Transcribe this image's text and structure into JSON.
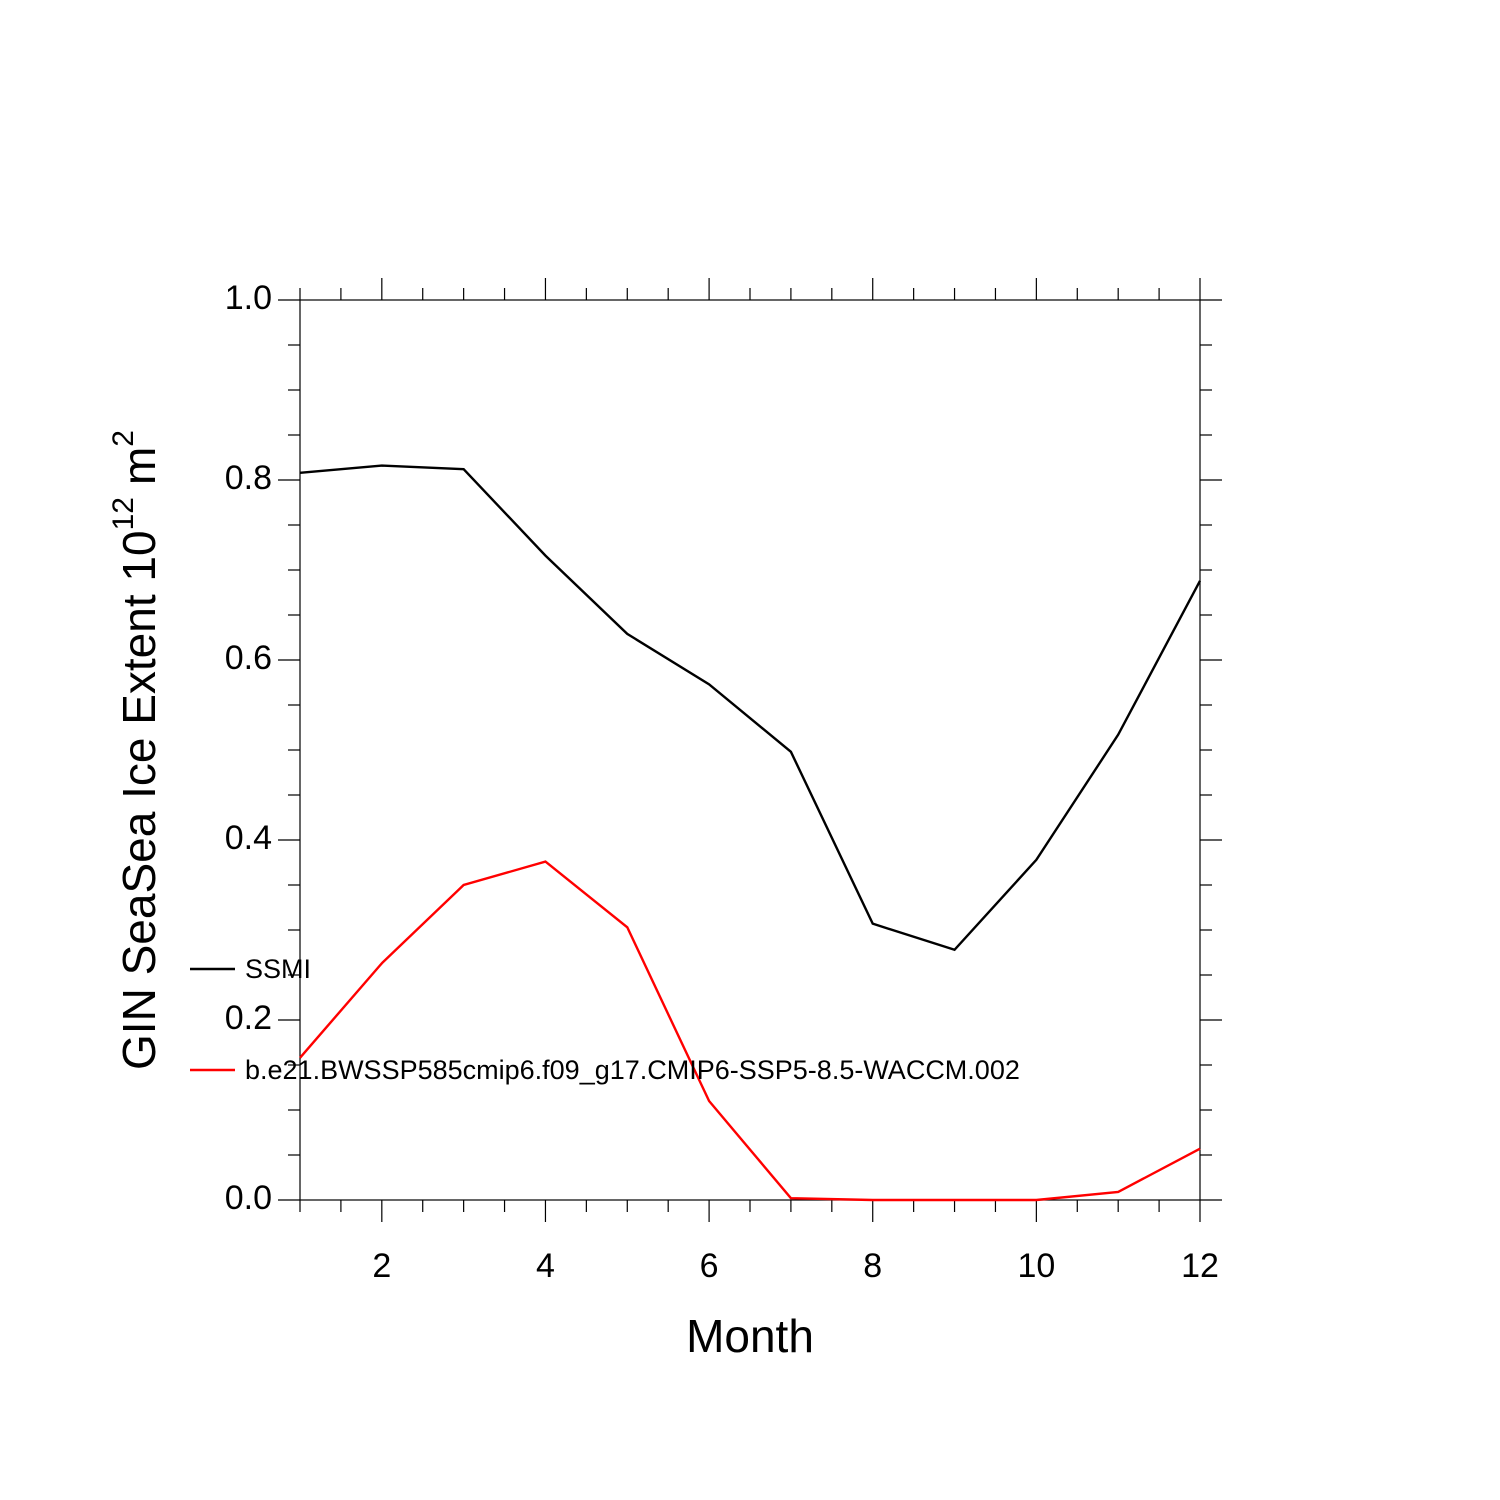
{
  "chart_data": {
    "type": "line",
    "x_label": "Month",
    "y_label": "GIN SeaSea Ice Extent 10",
    "y_label_exponent": "12",
    "y_label_unit": "m",
    "y_label_unit_exponent": "2",
    "x": [
      1,
      2,
      3,
      4,
      5,
      6,
      7,
      8,
      9,
      10,
      11,
      12
    ],
    "series": [
      {
        "name": "SSMI",
        "color": "#000000",
        "values": [
          0.808,
          0.816,
          0.812,
          0.716,
          0.629,
          0.573,
          0.498,
          0.307,
          0.278,
          0.378,
          0.517,
          0.688
        ]
      },
      {
        "name": "b.e21.BWSSP585cmip6.f09_g17.CMIP6-SSP5-8.5-WACCM.002",
        "color": "#ff0000",
        "values": [
          0.158,
          0.263,
          0.35,
          0.376,
          0.303,
          0.11,
          0.002,
          0,
          0,
          0,
          0.009,
          0.057
        ]
      }
    ],
    "xlim": [
      1,
      12
    ],
    "xticks": [
      2,
      4,
      6,
      8,
      10,
      12
    ],
    "ylim": [
      0,
      1
    ],
    "yticks": [
      {
        "value": 0,
        "label": "0.0"
      },
      0.2,
      0.4,
      0.6,
      0.8,
      {
        "value": 1,
        "label": "1.0"
      }
    ],
    "legend": "lower left"
  }
}
